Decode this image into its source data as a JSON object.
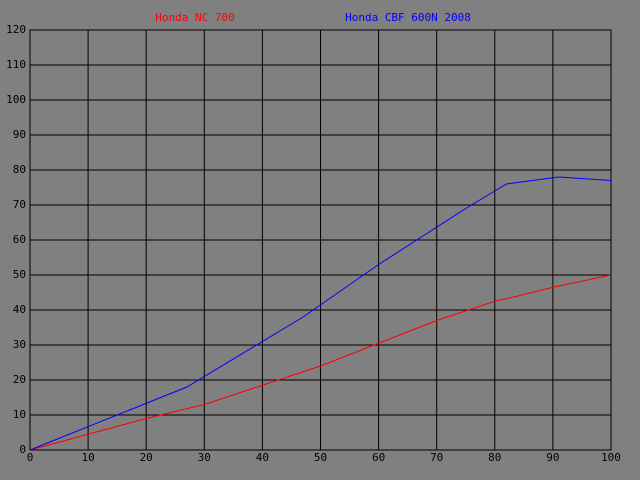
{
  "chart_data": {
    "type": "line",
    "series": [
      {
        "name": "Honda NC 700",
        "color": "#ff0000",
        "x": [
          0,
          10,
          20,
          30,
          40,
          50,
          60,
          70,
          80,
          84,
          90,
          100
        ],
        "values": [
          0,
          4.5,
          9,
          13,
          18.5,
          24,
          30.5,
          37,
          42.5,
          44,
          46.5,
          50
        ]
      },
      {
        "name": "Honda CBF 600N 2008",
        "color": "#0000ff",
        "x": [
          0,
          27,
          47,
          60,
          75,
          82,
          91,
          100
        ],
        "values": [
          0,
          18,
          38,
          53,
          69,
          76,
          78,
          77
        ]
      }
    ],
    "xlim": [
      0,
      100
    ],
    "xticks": [
      0,
      10,
      20,
      30,
      40,
      50,
      60,
      70,
      80,
      90,
      100
    ],
    "ylim": [
      0,
      120
    ],
    "yticks": [
      0,
      10,
      20,
      30,
      40,
      50,
      60,
      70,
      80,
      90,
      100,
      110,
      120
    ],
    "grid": true
  }
}
